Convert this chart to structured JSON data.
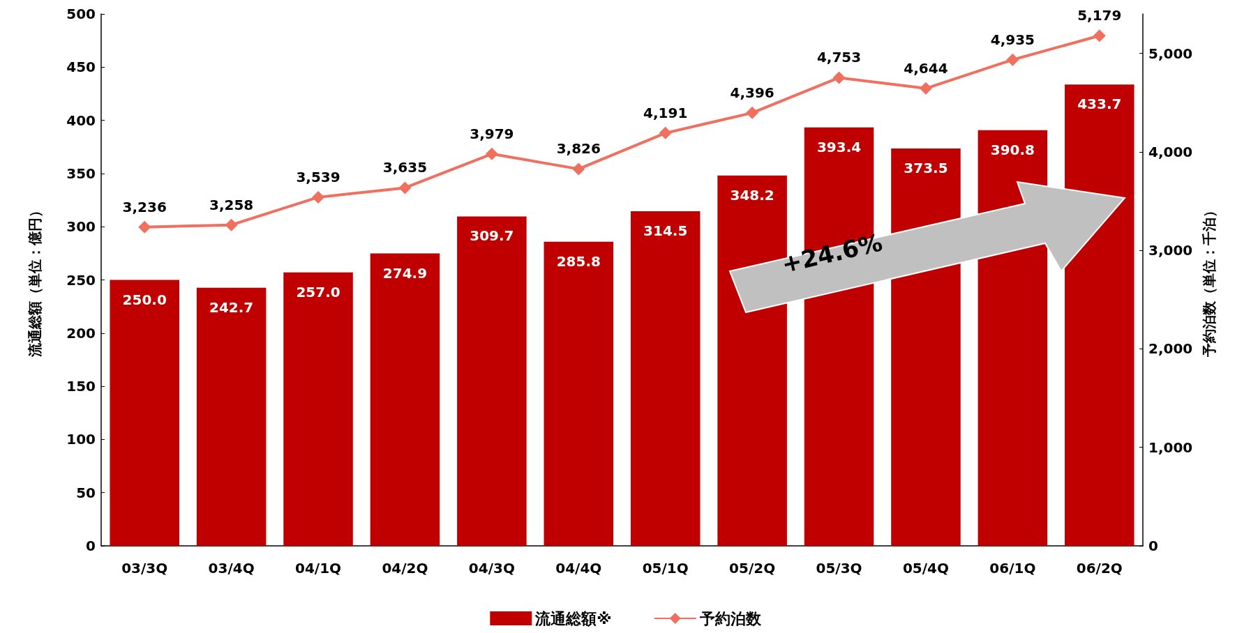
{
  "chart_data": {
    "type": "bar",
    "categories": [
      "03/3Q",
      "03/4Q",
      "04/1Q",
      "04/2Q",
      "04/3Q",
      "04/4Q",
      "05/1Q",
      "05/2Q",
      "05/3Q",
      "05/4Q",
      "06/1Q",
      "06/2Q"
    ],
    "ylabel": "流通総額（単位：億円）",
    "y2label": "予約泊数（単位：千泊）",
    "series": [
      {
        "name": "流通総額※",
        "color": "#c00000",
        "values": [
          250.0,
          242.7,
          257.0,
          274.9,
          309.7,
          285.8,
          314.5,
          348.2,
          393.4,
          373.5,
          390.8,
          433.7
        ],
        "value_labels": [
          "250.0",
          "242.7",
          "257.0",
          "274.9",
          "309.7",
          "285.8",
          "314.5",
          "348.2",
          "393.4",
          "373.5",
          "390.8",
          "433.7"
        ]
      },
      {
        "name": "予約泊数",
        "type": "line",
        "axis": "y2",
        "color": "#f07060",
        "marker": "diamond",
        "values": [
          3236,
          3258,
          3539,
          3635,
          3979,
          3826,
          4191,
          4396,
          4753,
          4644,
          4935,
          5179
        ],
        "value_labels": [
          "3,236",
          "3,258",
          "3,539",
          "3,635",
          "3,979",
          "3,826",
          "4,191",
          "4,396",
          "4,753",
          "4,644",
          "4,935",
          "5,179"
        ]
      }
    ],
    "ylim": [
      0,
      500
    ],
    "yticks": [
      0,
      50,
      100,
      150,
      200,
      250,
      300,
      350,
      400,
      450,
      500
    ],
    "y2lim": [
      0,
      5400
    ],
    "y2ticks": [
      0,
      {
        "value": 1000,
        "label": "1,000"
      },
      {
        "value": 2000,
        "label": "2,000"
      },
      {
        "value": 3000,
        "label": "3,000"
      },
      {
        "value": 4000,
        "label": "4,000"
      },
      {
        "value": 5000,
        "label": "5,000"
      }
    ],
    "annotations": [
      "+24.6%"
    ],
    "grid": false,
    "legend": "bottom"
  }
}
